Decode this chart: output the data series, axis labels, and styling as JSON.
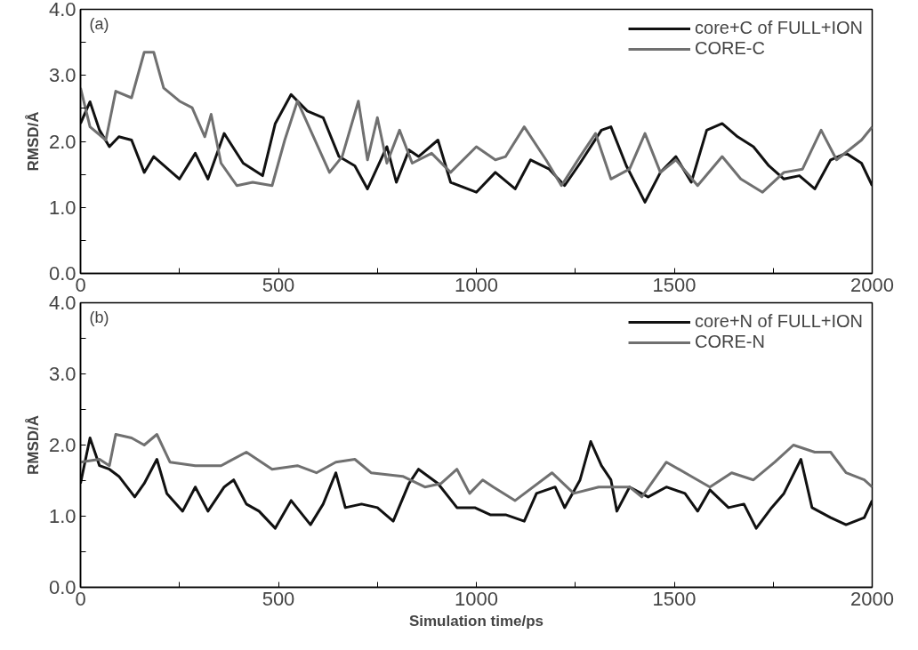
{
  "chart_data": [
    {
      "type": "line",
      "annotations": [
        "(a)"
      ],
      "ylabel": "RMSD/Å",
      "xlim": [
        0,
        2000
      ],
      "ylim": [
        0,
        4
      ],
      "xticks": [
        0,
        {
          "value": 250,
          "label": null
        },
        500,
        {
          "value": 750,
          "label": null
        },
        1000,
        {
          "value": 1250,
          "label": null
        },
        1500,
        {
          "value": 1750,
          "label": null
        },
        2000
      ],
      "yticks": [
        {
          "value": 0,
          "label": "0.0"
        },
        {
          "value": 0.5,
          "label": null
        },
        {
          "value": 1,
          "label": "1.0"
        },
        {
          "value": 1.5,
          "label": null
        },
        {
          "value": 2,
          "label": "2.0"
        },
        {
          "value": 2.5,
          "label": null
        },
        {
          "value": 3,
          "label": "3.0"
        },
        {
          "value": 3.5,
          "label": null
        },
        {
          "value": 4,
          "label": "4.0"
        }
      ],
      "legend": "top right",
      "grid": false,
      "line_style": "solid",
      "marker": "none",
      "series": [
        {
          "name": "core+C of FULL+ION",
          "color": "#111111",
          "x": [
            0,
            24,
            48,
            73,
            97,
            129,
            161,
            185,
            250,
            290,
            322,
            363,
            411,
            460,
            492,
            532,
            573,
            613,
            653,
            693,
            725,
            774,
            798,
            830,
            854,
            903,
            935,
            1000,
            1048,
            1098,
            1137,
            1184,
            1223,
            1262,
            1316,
            1340,
            1379,
            1426,
            1465,
            1504,
            1543,
            1582,
            1621,
            1660,
            1700,
            1739,
            1777,
            1816,
            1855,
            1895,
            1934,
            1973,
            2000
          ],
          "values": [
            2.27,
            2.6,
            2.17,
            1.92,
            2.07,
            2.02,
            1.53,
            1.77,
            1.43,
            1.82,
            1.43,
            2.12,
            1.67,
            1.48,
            2.27,
            2.71,
            2.46,
            2.36,
            1.77,
            1.63,
            1.28,
            1.92,
            1.38,
            1.87,
            1.77,
            2.02,
            1.38,
            1.23,
            1.53,
            1.28,
            1.72,
            1.58,
            1.33,
            1.67,
            2.17,
            2.22,
            1.63,
            1.08,
            1.53,
            1.77,
            1.38,
            2.17,
            2.27,
            2.07,
            1.92,
            1.63,
            1.43,
            1.48,
            1.28,
            1.72,
            1.82,
            1.67,
            1.33
          ]
        },
        {
          "name": "CORE-C",
          "color": "#707070",
          "x": [
            0,
            24,
            64,
            89,
            129,
            161,
            185,
            210,
            250,
            282,
            314,
            330,
            355,
            395,
            435,
            484,
            516,
            548,
            581,
            629,
            661,
            702,
            725,
            750,
            774,
            806,
            838,
            887,
            935,
            1000,
            1048,
            1074,
            1121,
            1176,
            1215,
            1262,
            1301,
            1340,
            1387,
            1426,
            1465,
            1504,
            1559,
            1621,
            1668,
            1723,
            1777,
            1824,
            1871,
            1910,
            1973,
            2000
          ],
          "values": [
            2.81,
            2.22,
            2.02,
            2.76,
            2.66,
            3.35,
            3.35,
            2.81,
            2.61,
            2.51,
            2.07,
            2.41,
            1.67,
            1.33,
            1.38,
            1.33,
            2.02,
            2.61,
            2.17,
            1.53,
            1.77,
            2.61,
            1.72,
            2.36,
            1.67,
            2.17,
            1.67,
            1.82,
            1.53,
            1.92,
            1.72,
            1.77,
            2.22,
            1.72,
            1.33,
            1.77,
            2.12,
            1.43,
            1.58,
            2.12,
            1.53,
            1.72,
            1.33,
            1.77,
            1.43,
            1.23,
            1.53,
            1.58,
            2.17,
            1.72,
            2.02,
            2.22
          ]
        }
      ]
    },
    {
      "type": "line",
      "annotations": [
        "(b)"
      ],
      "xlabel": "Simulation time/ps",
      "ylabel": "RMSD/Å",
      "xlim": [
        0,
        2000
      ],
      "ylim": [
        0,
        4
      ],
      "xticks": [
        0,
        {
          "value": 250,
          "label": null
        },
        500,
        {
          "value": 750,
          "label": null
        },
        1000,
        {
          "value": 1250,
          "label": null
        },
        1500,
        {
          "value": 1750,
          "label": null
        },
        2000
      ],
      "yticks": [
        {
          "value": 0,
          "label": "0.0"
        },
        {
          "value": 0.5,
          "label": null
        },
        {
          "value": 1,
          "label": "1.0"
        },
        {
          "value": 1.5,
          "label": null
        },
        {
          "value": 2,
          "label": "2.0"
        },
        {
          "value": 2.5,
          "label": null
        },
        {
          "value": 3,
          "label": "3.0"
        },
        {
          "value": 3.5,
          "label": null
        },
        {
          "value": 4,
          "label": "4.0"
        }
      ],
      "legend": "top right",
      "grid": false,
      "line_style": "solid",
      "marker": "none",
      "series": [
        {
          "name": "core+N of FULL+ION",
          "color": "#111111",
          "x": [
            0,
            24,
            48,
            73,
            97,
            137,
            161,
            193,
            218,
            258,
            290,
            322,
            363,
            387,
            419,
            451,
            492,
            532,
            581,
            613,
            645,
            669,
            710,
            750,
            790,
            830,
            854,
            903,
            951,
            996,
            1035,
            1074,
            1121,
            1152,
            1199,
            1223,
            1262,
            1289,
            1316,
            1340,
            1355,
            1387,
            1434,
            1480,
            1527,
            1559,
            1590,
            1637,
            1676,
            1707,
            1746,
            1777,
            1820,
            1848,
            1895,
            1934,
            1980,
            2000
          ],
          "values": [
            1.46,
            2.1,
            1.71,
            1.66,
            1.56,
            1.27,
            1.46,
            1.8,
            1.32,
            1.07,
            1.41,
            1.07,
            1.41,
            1.51,
            1.17,
            1.07,
            0.83,
            1.22,
            0.88,
            1.17,
            1.61,
            1.12,
            1.17,
            1.12,
            0.93,
            1.46,
            1.66,
            1.46,
            1.12,
            1.12,
            1.02,
            1.02,
            0.93,
            1.32,
            1.41,
            1.12,
            1.51,
            2.05,
            1.71,
            1.51,
            1.07,
            1.41,
            1.27,
            1.41,
            1.32,
            1.07,
            1.37,
            1.12,
            1.17,
            0.83,
            1.12,
            1.32,
            1.8,
            1.12,
            0.98,
            0.88,
            0.98,
            1.22
          ]
        },
        {
          "name": "CORE-N",
          "color": "#707070",
          "x": [
            0,
            48,
            73,
            89,
            129,
            161,
            193,
            226,
            290,
            355,
            419,
            484,
            548,
            596,
            645,
            693,
            734,
            814,
            870,
            911,
            951,
            983,
            1016,
            1043,
            1098,
            1191,
            1246,
            1309,
            1387,
            1418,
            1480,
            1543,
            1590,
            1645,
            1700,
            1754,
            1801,
            1855,
            1895,
            1934,
            1980,
            2000
          ],
          "values": [
            1.76,
            1.8,
            1.71,
            2.15,
            2.1,
            2.0,
            2.15,
            1.76,
            1.71,
            1.71,
            1.9,
            1.66,
            1.71,
            1.61,
            1.76,
            1.8,
            1.61,
            1.56,
            1.41,
            1.46,
            1.66,
            1.32,
            1.51,
            1.41,
            1.22,
            1.61,
            1.32,
            1.41,
            1.41,
            1.27,
            1.76,
            1.56,
            1.41,
            1.61,
            1.51,
            1.76,
            2.0,
            1.9,
            1.9,
            1.61,
            1.51,
            1.41
          ]
        }
      ]
    }
  ]
}
